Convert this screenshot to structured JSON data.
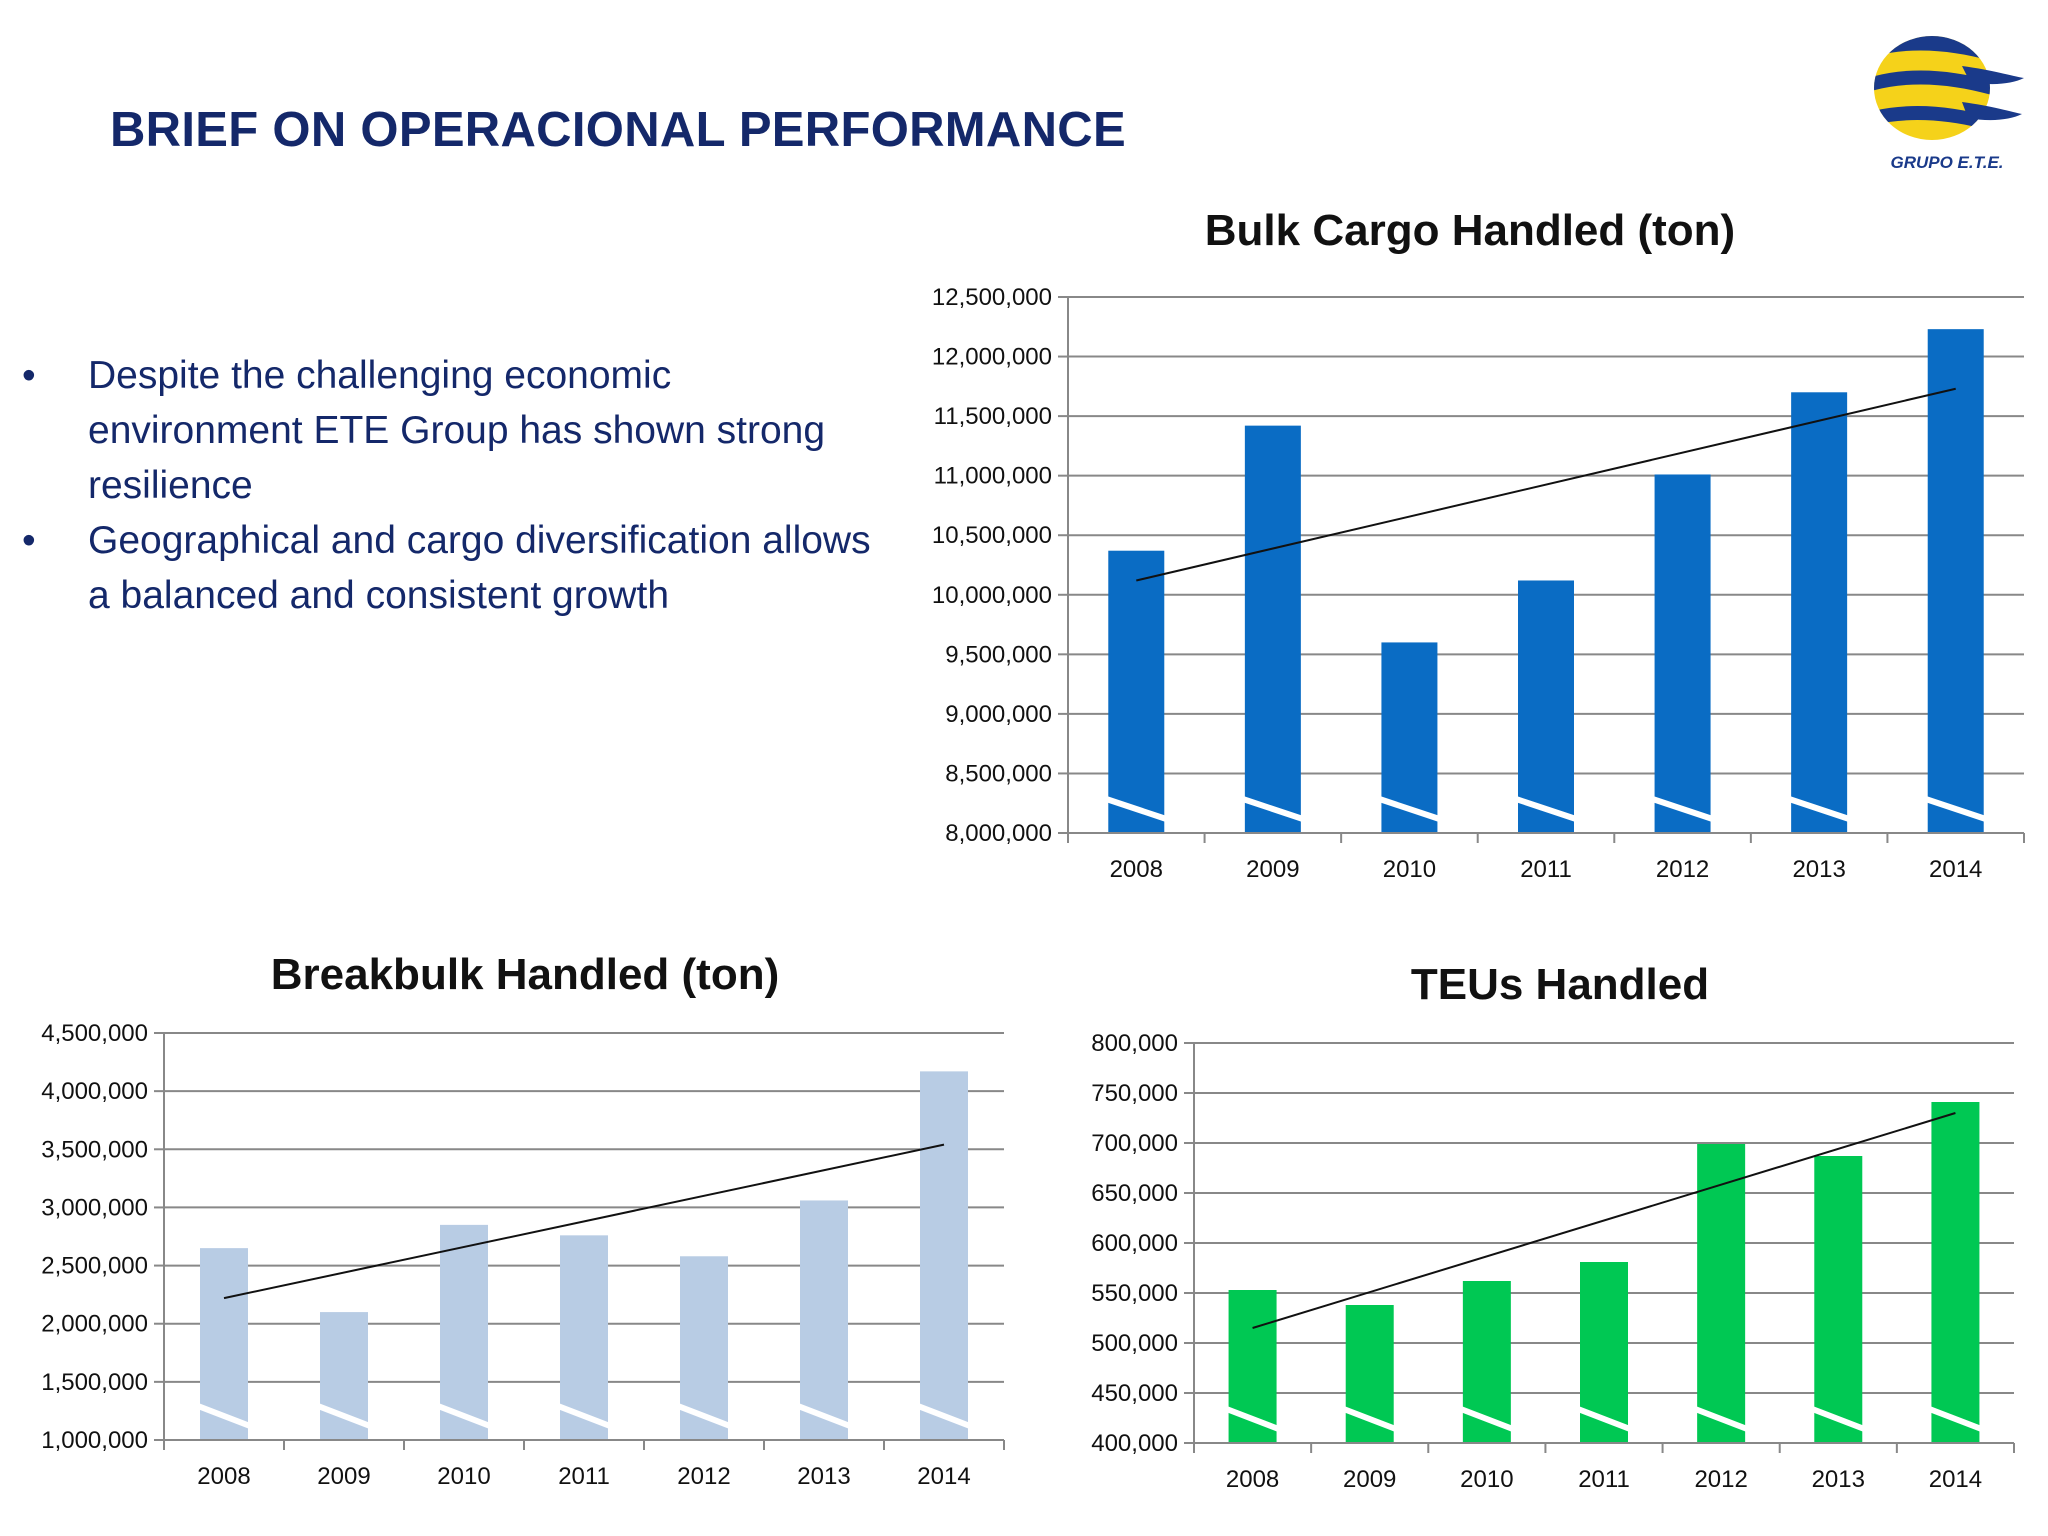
{
  "page": {
    "title": "BRIEF ON OPERACIONAL PERFORMANCE",
    "bullets": [
      "Despite the challenging economic environment ETE Group has shown strong resilience",
      "Geographical and cargo diversification allows a balanced and consistent growth"
    ],
    "logo": {
      "text": "GRUPO E.T.E.",
      "icon": "grupo-ete-logo-icon"
    }
  },
  "colors": {
    "title": "#14286a",
    "bulk": "#0a6cc4",
    "breakbulk": "#b8cce4",
    "teu": "#00c853",
    "grid": "#888888",
    "trend": "#111111"
  },
  "chart_data": [
    {
      "id": "bulk",
      "type": "bar",
      "title": "Bulk Cargo Handled (ton)",
      "categories": [
        "2008",
        "2009",
        "2010",
        "2011",
        "2012",
        "2013",
        "2014"
      ],
      "values": [
        10370000,
        11420000,
        9600000,
        10120000,
        11010000,
        11700000,
        12230000
      ],
      "ylim": [
        8000000,
        12500000
      ],
      "yticks": [
        "8,000,000",
        "8,500,000",
        "9,000,000",
        "9,500,000",
        "10,000,000",
        "10,500,000",
        "11,000,000",
        "11,500,000",
        "12,000,000",
        "12,500,000"
      ],
      "trendline": [
        10120000,
        11730000
      ],
      "grid": true,
      "axis_break": true
    },
    {
      "id": "breakbulk",
      "type": "bar",
      "title": "Breakbulk Handled (ton)",
      "categories": [
        "2008",
        "2009",
        "2010",
        "2011",
        "2012",
        "2013",
        "2014"
      ],
      "values": [
        2650000,
        2100000,
        2850000,
        2760000,
        2580000,
        3060000,
        4170000
      ],
      "ylim": [
        1000000,
        4500000
      ],
      "yticks": [
        "1,000,000",
        "1,500,000",
        "2,000,000",
        "2,500,000",
        "3,000,000",
        "3,500,000",
        "4,000,000",
        "4,500,000"
      ],
      "trendline": [
        2220000,
        3540000
      ],
      "grid": true,
      "axis_break": true
    },
    {
      "id": "teu",
      "type": "bar",
      "title": "TEUs Handled",
      "categories": [
        "2008",
        "2009",
        "2010",
        "2011",
        "2012",
        "2013",
        "2014"
      ],
      "values": [
        553000,
        538000,
        562000,
        581000,
        699000,
        687000,
        741000
      ],
      "ylim": [
        400000,
        800000
      ],
      "yticks": [
        "400,000",
        "450,000",
        "500,000",
        "550,000",
        "600,000",
        "650,000",
        "700,000",
        "750,000",
        "800,000"
      ],
      "trendline": [
        515000,
        730000
      ],
      "grid": true,
      "axis_break": true
    }
  ]
}
